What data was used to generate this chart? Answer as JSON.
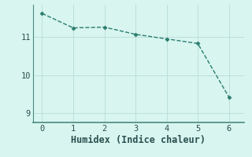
{
  "x": [
    0,
    1,
    2,
    3,
    4,
    5,
    6
  ],
  "y": [
    11.62,
    11.24,
    11.26,
    11.07,
    10.95,
    10.83,
    9.42
  ],
  "line_color": "#2a7d6e",
  "marker": "D",
  "marker_size": 2.5,
  "xlabel": "Humidex (Indice chaleur)",
  "ylim": [
    8.75,
    11.85
  ],
  "xlim": [
    -0.3,
    6.5
  ],
  "yticks": [
    9,
    10,
    11
  ],
  "xticks": [
    0,
    1,
    2,
    3,
    4,
    5,
    6
  ],
  "background_color": "#d8f5ef",
  "grid_color": "#b8ddd6",
  "spine_color": "#4a8a80",
  "font_color": "#2a5050",
  "xlabel_fontsize": 8.5,
  "tick_labelsize": 7.5
}
